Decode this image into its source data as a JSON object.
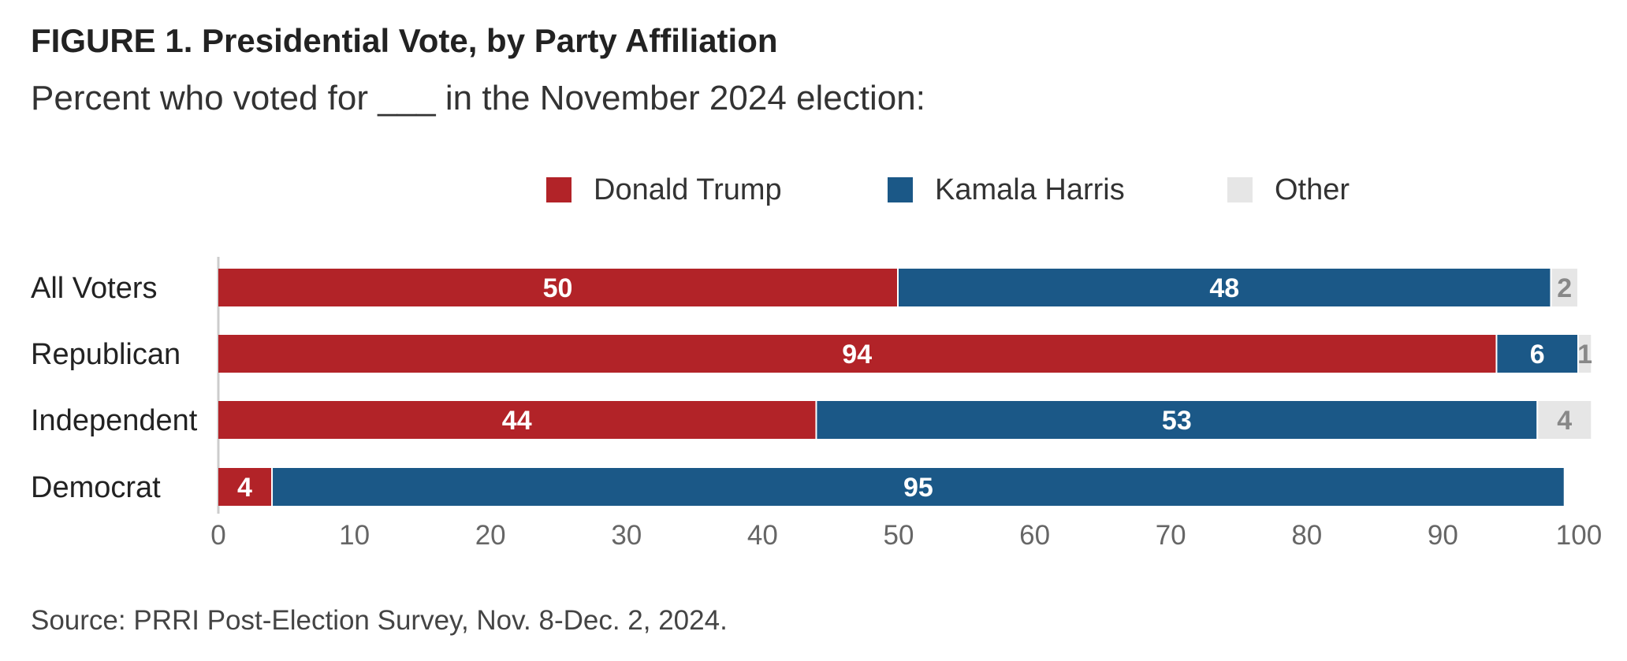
{
  "title": "FIGURE 1. Presidential Vote, by Party Affiliation",
  "subtitle": "Percent who voted for ___ in the November 2024 election:",
  "source": "Source: PRRI Post-Election Survey, Nov. 8-Dec. 2, 2024.",
  "colors": {
    "trump": "#B22328",
    "harris": "#1B5887",
    "other": "#E6E6E6",
    "label_on_dark": "#ffffff",
    "label_on_light": "#888888"
  },
  "chart_data": {
    "type": "bar",
    "orientation": "horizontal",
    "stacked": true,
    "categories": [
      "All Voters",
      "Republican",
      "Independent",
      "Democrat"
    ],
    "series": [
      {
        "name": "Donald Trump",
        "values": [
          50,
          94,
          44,
          4
        ]
      },
      {
        "name": "Kamala Harris",
        "values": [
          48,
          6,
          53,
          95
        ]
      },
      {
        "name": "Other",
        "values": [
          2,
          1,
          4,
          null
        ]
      }
    ],
    "data_labels": [
      [
        "50",
        "94",
        "44",
        "4"
      ],
      [
        "48",
        "6",
        "53",
        "95"
      ],
      [
        "2",
        "1",
        "4",
        ""
      ]
    ],
    "xlim": [
      0,
      100
    ],
    "xticks": [
      0,
      10,
      20,
      30,
      40,
      50,
      60,
      70,
      80,
      90,
      100
    ],
    "legend_position": "top-center",
    "grid": false
  }
}
